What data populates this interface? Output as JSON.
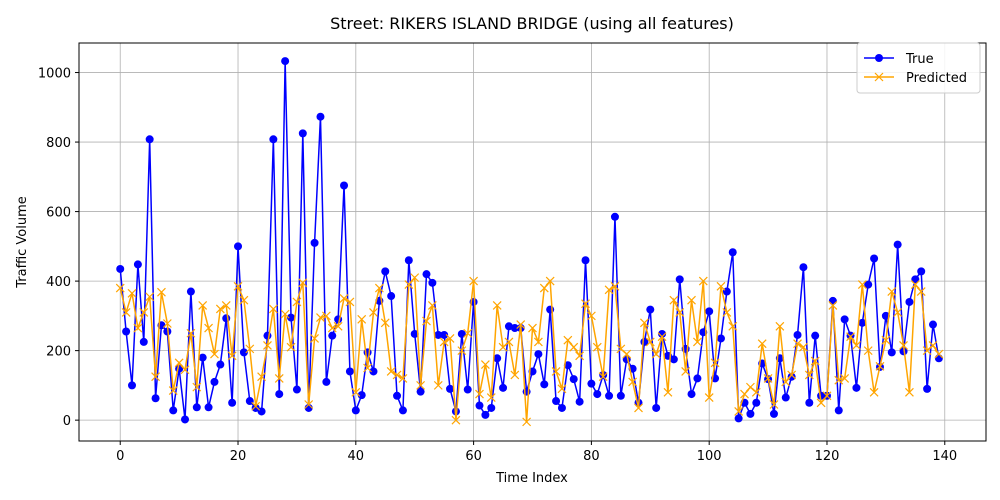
{
  "chart_data": {
    "type": "line",
    "title": "Street: RIKERS ISLAND BRIDGE (using all features)",
    "xlabel": "Time Index",
    "ylabel": "Traffic Volume",
    "xlim": [
      -7,
      147
    ],
    "ylim": [
      -60,
      1085
    ],
    "xticks": [
      0,
      20,
      40,
      60,
      80,
      100,
      120,
      140
    ],
    "yticks": [
      0,
      200,
      400,
      600,
      800,
      1000
    ],
    "grid": true,
    "legend_position": "top-right",
    "x": [
      0,
      1,
      2,
      3,
      4,
      5,
      6,
      7,
      8,
      9,
      10,
      11,
      12,
      13,
      14,
      15,
      16,
      17,
      18,
      19,
      20,
      21,
      22,
      23,
      24,
      25,
      26,
      27,
      28,
      29,
      30,
      31,
      32,
      33,
      34,
      35,
      36,
      37,
      38,
      39,
      40,
      41,
      42,
      43,
      44,
      45,
      46,
      47,
      48,
      49,
      50,
      51,
      52,
      53,
      54,
      55,
      56,
      57,
      58,
      59,
      60,
      61,
      62,
      63,
      64,
      65,
      66,
      67,
      68,
      69,
      70,
      71,
      72,
      73,
      74,
      75,
      76,
      77,
      78,
      79,
      80,
      81,
      82,
      83,
      84,
      85,
      86,
      87,
      88,
      89,
      90,
      91,
      92,
      93,
      94,
      95,
      96,
      97,
      98,
      99,
      100,
      101,
      102,
      103,
      104,
      105,
      106,
      107,
      108,
      109,
      110,
      111,
      112,
      113,
      114,
      115,
      116,
      117,
      118,
      119,
      120,
      121,
      122,
      123,
      124,
      125,
      126,
      127,
      128,
      129,
      130,
      131,
      132,
      133,
      134,
      135,
      136,
      137,
      138,
      139
    ],
    "series": [
      {
        "name": "True",
        "color": "#0000ff",
        "marker": "circle",
        "values": [
          435,
          255,
          100,
          448,
          225,
          808,
          63,
          273,
          255,
          28,
          148,
          2,
          370,
          37,
          180,
          37,
          110,
          160,
          293,
          50,
          500,
          195,
          55,
          35,
          25,
          243,
          808,
          75,
          1033,
          295,
          88,
          825,
          35,
          510,
          873,
          110,
          243,
          290,
          675,
          140,
          28,
          72,
          195,
          140,
          343,
          428,
          357,
          70,
          28,
          460,
          248,
          82,
          420,
          395,
          245,
          245,
          90,
          25,
          248,
          88,
          340,
          42,
          15,
          35,
          178,
          93,
          270,
          265,
          265,
          82,
          140,
          190,
          103,
          318,
          55,
          35,
          158,
          118,
          53,
          460,
          105,
          75,
          130,
          70,
          585,
          70,
          175,
          148,
          50,
          225,
          318,
          35,
          248,
          185,
          175,
          405,
          205,
          75,
          120,
          253,
          313,
          120,
          235,
          370,
          483,
          5,
          50,
          18,
          50,
          163,
          118,
          18,
          178,
          65,
          125,
          245,
          440,
          50,
          243,
          70,
          70,
          343,
          28,
          290,
          243,
          93,
          280,
          390,
          465,
          153,
          300,
          195,
          505,
          198,
          340,
          405,
          428,
          90,
          275,
          178
        ]
      },
      {
        "name": "Predicted",
        "color": "#ffa500",
        "marker": "x",
        "values": [
          380,
          310,
          365,
          265,
          310,
          355,
          125,
          368,
          278,
          85,
          165,
          145,
          250,
          95,
          330,
          265,
          190,
          320,
          330,
          185,
          385,
          345,
          205,
          40,
          125,
          215,
          320,
          120,
          305,
          210,
          340,
          395,
          45,
          235,
          295,
          300,
          265,
          270,
          350,
          340,
          80,
          290,
          150,
          310,
          380,
          280,
          140,
          130,
          120,
          390,
          410,
          100,
          285,
          330,
          100,
          225,
          235,
          0,
          200,
          250,
          400,
          75,
          160,
          65,
          330,
          210,
          225,
          130,
          275,
          -5,
          265,
          225,
          380,
          400,
          140,
          90,
          230,
          210,
          185,
          335,
          300,
          210,
          125,
          375,
          385,
          205,
          190,
          110,
          35,
          280,
          225,
          190,
          240,
          80,
          345,
          310,
          140,
          345,
          225,
          400,
          65,
          165,
          385,
          310,
          270,
          25,
          75,
          95,
          80,
          220,
          120,
          45,
          270,
          110,
          130,
          220,
          210,
          130,
          170,
          50,
          70,
          330,
          115,
          120,
          240,
          215,
          390,
          200,
          80,
          155,
          230,
          370,
          310,
          215,
          80,
          390,
          370,
          200,
          215,
          190
        ]
      }
    ]
  }
}
